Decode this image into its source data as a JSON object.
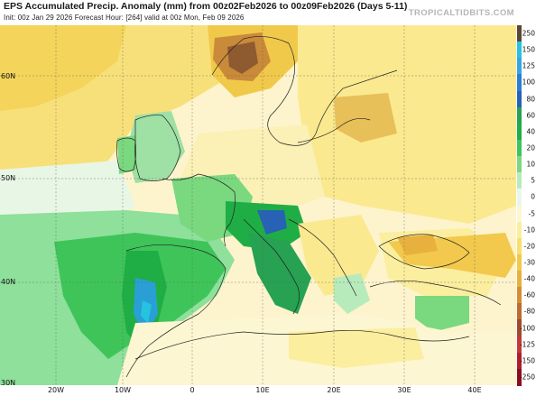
{
  "header": {
    "title": "EPS Accumulated Precip. Anomaly (mm) from 00z02Feb2026 to 00z09Feb2026 (Days 5-11)",
    "subtitle": "Init: 00z Jan 29 2026   Forecast Hour: [264]   valid at 00z Mon, Feb 09 2026",
    "brand": "TROPICALTIDBITS.COM"
  },
  "map": {
    "lat_labels": [
      "60N",
      "50N",
      "40N",
      "30N"
    ],
    "lon_labels": [
      "20W",
      "10W",
      "0",
      "10E",
      "20E",
      "30E",
      "40E"
    ]
  },
  "colorbar": {
    "levels": [
      {
        "label": "250",
        "color": "#5b4636"
      },
      {
        "label": "150",
        "color": "#25c3e0"
      },
      {
        "label": "125",
        "color": "#36a6e2"
      },
      {
        "label": "100",
        "color": "#2a7fd1"
      },
      {
        "label": "80",
        "color": "#2762b5"
      },
      {
        "label": "60",
        "color": "#27a152"
      },
      {
        "label": "40",
        "color": "#1fae45"
      },
      {
        "label": "20",
        "color": "#3fc45a"
      },
      {
        "label": "10",
        "color": "#7ad87f"
      },
      {
        "label": "5",
        "color": "#b8ebbc"
      },
      {
        "label": "0",
        "color": "#e9f7eb"
      },
      {
        "label": "-5",
        "color": "#fdf6d2"
      },
      {
        "label": "-10",
        "color": "#fbee9e"
      },
      {
        "label": "-20",
        "color": "#f8e06a"
      },
      {
        "label": "-30",
        "color": "#f2c94c"
      },
      {
        "label": "-40",
        "color": "#e8b13d"
      },
      {
        "label": "-60",
        "color": "#d58d34"
      },
      {
        "label": "-80",
        "color": "#bd6b2f"
      },
      {
        "label": "-100",
        "color": "#a1492c"
      },
      {
        "label": "-125",
        "color": "#c23a3a"
      },
      {
        "label": "-150",
        "color": "#b01e2b"
      },
      {
        "label": "-250",
        "color": "#8c0c1e"
      }
    ]
  }
}
